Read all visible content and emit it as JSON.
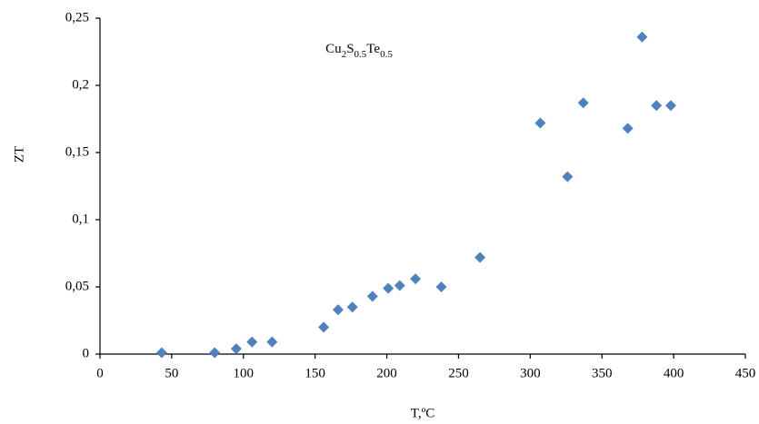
{
  "chart_data": {
    "type": "scatter",
    "annotation": [
      "Cu",
      "2",
      "S",
      "0.5",
      "Te",
      "0.5"
    ],
    "x_label": "T,ºC",
    "y_label": "ZT",
    "series": [
      {
        "color": "#4f81bd",
        "x": [
          43,
          80,
          95,
          106,
          120,
          156,
          166,
          176,
          190,
          201,
          209,
          220,
          238,
          265,
          307,
          326,
          337,
          368,
          378,
          388,
          398
        ],
        "values": [
          0.001,
          0.001,
          0.004,
          0.009,
          0.009,
          0.02,
          0.033,
          0.035,
          0.043,
          0.049,
          0.051,
          0.056,
          0.05,
          0.072,
          0.172,
          0.132,
          0.187,
          0.168,
          0.236,
          0.185,
          0.185
        ]
      }
    ],
    "xlim": [
      0,
      450
    ],
    "xticks": [
      0,
      50,
      100,
      150,
      200,
      250,
      300,
      350,
      400,
      450
    ],
    "ylim": [
      0,
      0.25
    ],
    "yticks": [
      0,
      {
        "value": 0.05,
        "label": "0,05"
      },
      {
        "value": 0.1,
        "label": "0,1"
      },
      {
        "value": 0.15,
        "label": "0,15"
      },
      {
        "value": 0.2,
        "label": "0,2"
      },
      {
        "value": 0.25,
        "label": "0,25"
      }
    ],
    "grid": false
  }
}
